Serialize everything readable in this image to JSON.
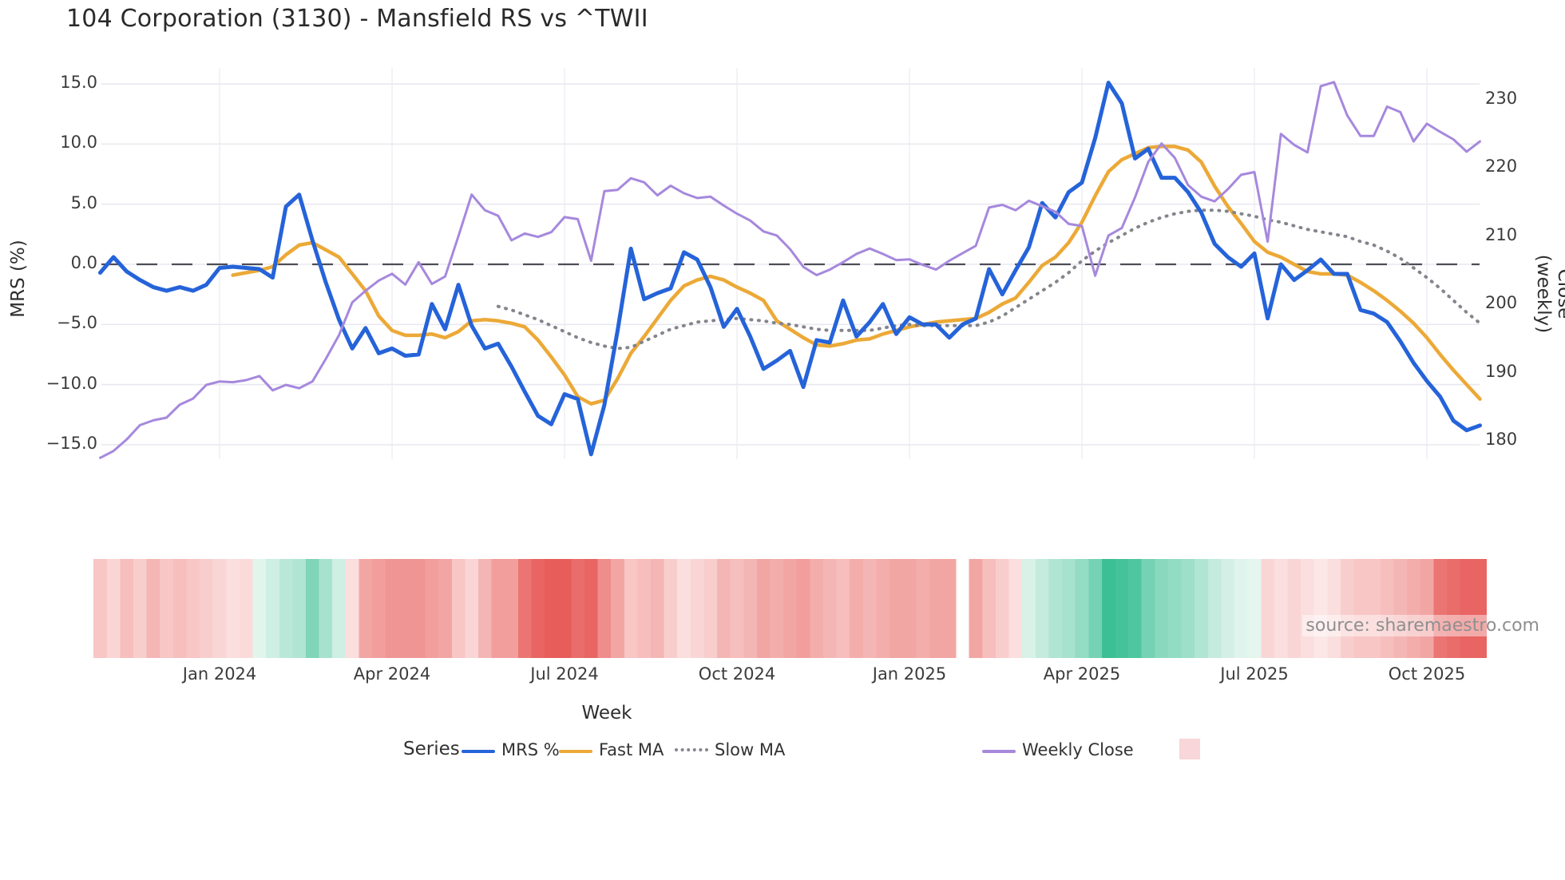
{
  "header": {
    "title": "104 Corporation (3130) - Mansfield RS vs ^TWII"
  },
  "source_note": "source: sharemaestro.com",
  "legend": {
    "title": "Series",
    "items": [
      {
        "label": "MRS %",
        "swatch": "line",
        "color": "#2563d9"
      },
      {
        "label": "Fast MA",
        "swatch": "line",
        "color": "#eca937"
      },
      {
        "label": "Slow MA",
        "swatch": "dotted-line",
        "color": "#84848c"
      },
      {
        "label": "Weekly Close",
        "swatch": "line",
        "color": "#a688dd"
      },
      {
        "label": "",
        "swatch": "square",
        "color": "#f8d6d9"
      }
    ]
  },
  "chart_data": {
    "type": "line",
    "title": "104 Corporation (3130) - Mansfield RS vs ^TWII",
    "xlabel": "Week",
    "ylabel_left": "MRS (%)",
    "ylabel_right": "Close (weekly)",
    "grid": true,
    "weeks": 105,
    "ylim_left": [
      -16.3,
      16.3
    ],
    "ylim_right": [
      177.3,
      234.7
    ],
    "zero_line_left": 0,
    "yticks_left": [
      {
        "label": "15.0",
        "value": 15
      },
      {
        "label": "10.0",
        "value": 10
      },
      {
        "label": "5.0",
        "value": 5
      },
      {
        "label": "0.0",
        "value": 0
      },
      {
        "label": "−5.0",
        "value": -5
      },
      {
        "label": "−10.0",
        "value": -10
      },
      {
        "label": "−15.0",
        "value": -15
      }
    ],
    "yticks_right": [
      {
        "label": "230",
        "value": 230
      },
      {
        "label": "220",
        "value": 220
      },
      {
        "label": "210",
        "value": 210
      },
      {
        "label": "200",
        "value": 200
      },
      {
        "label": "190",
        "value": 190
      },
      {
        "label": "180",
        "value": 180
      }
    ],
    "xticks": [
      {
        "label": "Jan 2024",
        "week": 9
      },
      {
        "label": "Apr 2024",
        "week": 22
      },
      {
        "label": "Jul 2024",
        "week": 35
      },
      {
        "label": "Oct 2024",
        "week": 48
      },
      {
        "label": "Jan 2025",
        "week": 61
      },
      {
        "label": "Apr 2025",
        "week": 74
      },
      {
        "label": "Jul 2025",
        "week": 87
      },
      {
        "label": "Oct 2025",
        "week": 100
      }
    ],
    "series": [
      {
        "name": "MRS %",
        "axis": "left",
        "color": "#2563d9",
        "style": "solid",
        "width": 5,
        "values": [
          -0.7,
          0.6,
          -0.6,
          -1.3,
          -1.9,
          -2.2,
          -1.9,
          -2.2,
          -1.7,
          -0.3,
          -0.2,
          -0.3,
          -0.4,
          -1.1,
          4.8,
          5.8,
          2.0,
          -1.5,
          -4.6,
          -7.0,
          -5.3,
          -7.4,
          -7.0,
          -7.6,
          -7.5,
          -3.3,
          -5.4,
          -1.7,
          -5.1,
          -7.0,
          -6.6,
          -8.5,
          -10.6,
          -12.6,
          -13.3,
          -10.8,
          -11.2,
          -15.8,
          -11.7,
          -5.5,
          1.3,
          -2.9,
          -2.4,
          -2.0,
          1.0,
          0.4,
          -1.9,
          -5.2,
          -3.7,
          -6.0,
          -8.7,
          -8.0,
          -7.2,
          -10.2,
          -6.3,
          -6.5,
          -3.0,
          -6.0,
          -4.8,
          -3.3,
          -5.8,
          -4.4,
          -5.0,
          -5.0,
          -6.1,
          -5.0,
          -4.5,
          -0.4,
          -2.5,
          -0.5,
          1.4,
          5.1,
          3.9,
          6.0,
          6.8,
          10.5,
          15.1,
          13.4,
          8.8,
          9.6,
          7.2,
          7.2,
          6.0,
          4.3,
          1.7,
          0.6,
          -0.2,
          0.9,
          -4.5,
          0.0,
          -1.3,
          -0.5,
          0.4,
          -0.8,
          -0.8,
          -3.8,
          -4.1,
          -4.8,
          -6.4,
          -8.2,
          -9.7,
          -11.0,
          -13.0,
          -13.8,
          -13.4
        ]
      },
      {
        "name": "Fast MA",
        "axis": "left",
        "color": "#eca937",
        "style": "solid",
        "width": 4.5,
        "values": [
          null,
          null,
          null,
          null,
          null,
          null,
          null,
          null,
          null,
          null,
          -0.9,
          -0.7,
          -0.5,
          -0.2,
          0.8,
          1.6,
          1.8,
          1.2,
          0.6,
          -0.8,
          -2.2,
          -4.3,
          -5.5,
          -5.9,
          -5.9,
          -5.8,
          -6.1,
          -5.6,
          -4.7,
          -4.6,
          -4.7,
          -4.9,
          -5.2,
          -6.3,
          -7.7,
          -9.2,
          -11.0,
          -11.6,
          -11.3,
          -9.5,
          -7.4,
          -6.0,
          -4.5,
          -3.0,
          -1.8,
          -1.3,
          -1.0,
          -1.3,
          -1.9,
          -2.4,
          -3.0,
          -4.7,
          -5.4,
          -6.1,
          -6.7,
          -6.8,
          -6.6,
          -6.3,
          -6.2,
          -5.8,
          -5.5,
          -5.2,
          -5.0,
          -4.8,
          -4.7,
          -4.6,
          -4.5,
          -4.0,
          -3.3,
          -2.8,
          -1.5,
          -0.1,
          0.6,
          1.8,
          3.5,
          5.7,
          7.7,
          8.7,
          9.2,
          9.7,
          9.8,
          9.8,
          9.5,
          8.5,
          6.5,
          4.8,
          3.4,
          1.9,
          1.0,
          0.6,
          0.0,
          -0.6,
          -0.8,
          -0.8,
          -0.9,
          -1.5,
          -2.2,
          -3.0,
          -3.9,
          -4.9,
          -6.1,
          -7.5,
          -8.8,
          -10.0,
          -11.2
        ]
      },
      {
        "name": "Slow MA",
        "axis": "left",
        "color": "#84848c",
        "style": "dotted",
        "width": 4,
        "values": [
          null,
          null,
          null,
          null,
          null,
          null,
          null,
          null,
          null,
          null,
          null,
          null,
          null,
          null,
          null,
          null,
          null,
          null,
          null,
          null,
          null,
          null,
          null,
          null,
          null,
          null,
          null,
          null,
          null,
          null,
          -3.5,
          -3.8,
          -4.2,
          -4.6,
          -5.1,
          -5.6,
          -6.1,
          -6.5,
          -6.8,
          -7.0,
          -6.9,
          -6.4,
          -5.9,
          -5.4,
          -5.1,
          -4.8,
          -4.7,
          -4.6,
          -4.5,
          -4.6,
          -4.7,
          -4.9,
          -5.0,
          -5.2,
          -5.4,
          -5.5,
          -5.5,
          -5.5,
          -5.5,
          -5.3,
          -5.1,
          -5.0,
          -5.1,
          -5.1,
          -5.1,
          -5.1,
          -5.1,
          -4.8,
          -4.3,
          -3.6,
          -2.9,
          -2.2,
          -1.5,
          -0.7,
          0.3,
          1.1,
          1.8,
          2.4,
          3.0,
          3.5,
          3.9,
          4.2,
          4.4,
          4.5,
          4.5,
          4.4,
          4.2,
          4.0,
          3.7,
          3.5,
          3.2,
          2.9,
          2.7,
          2.5,
          2.3,
          1.9,
          1.6,
          1.1,
          0.5,
          -0.3,
          -1.1,
          -2.0,
          -3.0,
          -4.0,
          -4.9
        ]
      },
      {
        "name": "Weekly Close",
        "axis": "right",
        "color": "#a688dd",
        "style": "solid",
        "width": 3,
        "values": [
          177.5,
          178.5,
          180.2,
          182.3,
          183.0,
          183.4,
          185.3,
          186.2,
          188.2,
          188.7,
          188.6,
          188.9,
          189.5,
          187.4,
          188.2,
          187.7,
          188.7,
          192.0,
          195.5,
          200.3,
          202.0,
          203.5,
          204.5,
          202.9,
          206.2,
          203.0,
          204.1,
          210.0,
          216.1,
          213.8,
          213.0,
          209.4,
          210.4,
          209.9,
          210.6,
          212.8,
          212.5,
          206.4,
          216.6,
          216.8,
          218.5,
          217.9,
          216.0,
          217.4,
          216.3,
          215.6,
          215.8,
          214.5,
          213.3,
          212.3,
          210.7,
          210.1,
          208.1,
          205.5,
          204.3,
          205.1,
          206.2,
          207.4,
          208.2,
          207.4,
          206.5,
          206.6,
          205.8,
          205.1,
          206.4,
          207.5,
          208.6,
          214.2,
          214.6,
          213.8,
          215.2,
          214.4,
          213.6,
          211.8,
          211.5,
          204.2,
          210.1,
          211.2,
          215.7,
          220.9,
          223.6,
          221.5,
          217.5,
          215.8,
          215.1,
          216.9,
          219.0,
          219.4,
          209.2,
          225.0,
          223.4,
          222.3,
          232.0,
          232.6,
          227.7,
          224.7,
          224.7,
          229.0,
          228.2,
          223.9,
          226.5,
          225.3,
          224.2,
          222.4,
          223.9
        ]
      }
    ],
    "heatmap": {
      "description": "weekly relative-strength heat strip, red negative / green positive, gap at week 65",
      "color_negative_max": "#e44d4a",
      "color_negative_min": "#fdeeee",
      "color_positive_min": "#ebf8f2",
      "color_positive_max": "#28b98b",
      "values": [
        -0.25,
        -0.15,
        -0.3,
        -0.2,
        -0.35,
        -0.25,
        -0.3,
        -0.25,
        -0.2,
        -0.15,
        -0.1,
        -0.12,
        0.05,
        0.15,
        0.25,
        0.3,
        0.55,
        0.35,
        0.15,
        -0.1,
        -0.45,
        -0.5,
        -0.55,
        -0.55,
        -0.55,
        -0.5,
        -0.45,
        -0.25,
        -0.15,
        -0.35,
        -0.5,
        -0.5,
        -0.75,
        -0.85,
        -0.9,
        -0.9,
        -0.8,
        -0.85,
        -0.6,
        -0.45,
        -0.25,
        -0.3,
        -0.35,
        -0.2,
        -0.1,
        -0.15,
        -0.2,
        -0.35,
        -0.3,
        -0.35,
        -0.45,
        -0.4,
        -0.45,
        -0.5,
        -0.4,
        -0.35,
        -0.3,
        -0.4,
        -0.35,
        -0.4,
        -0.45,
        -0.45,
        -0.4,
        -0.45,
        -0.45,
        null,
        -0.45,
        -0.3,
        -0.2,
        -0.1,
        0.1,
        0.2,
        0.3,
        0.35,
        0.45,
        0.6,
        0.9,
        0.85,
        0.8,
        0.6,
        0.5,
        0.45,
        0.4,
        0.3,
        0.2,
        0.12,
        0.06,
        0.03,
        -0.15,
        -0.1,
        -0.15,
        -0.1,
        -0.05,
        -0.1,
        -0.2,
        -0.25,
        -0.25,
        -0.3,
        -0.35,
        -0.4,
        -0.45,
        -0.75,
        -0.8,
        -0.85,
        -0.85
      ]
    }
  }
}
